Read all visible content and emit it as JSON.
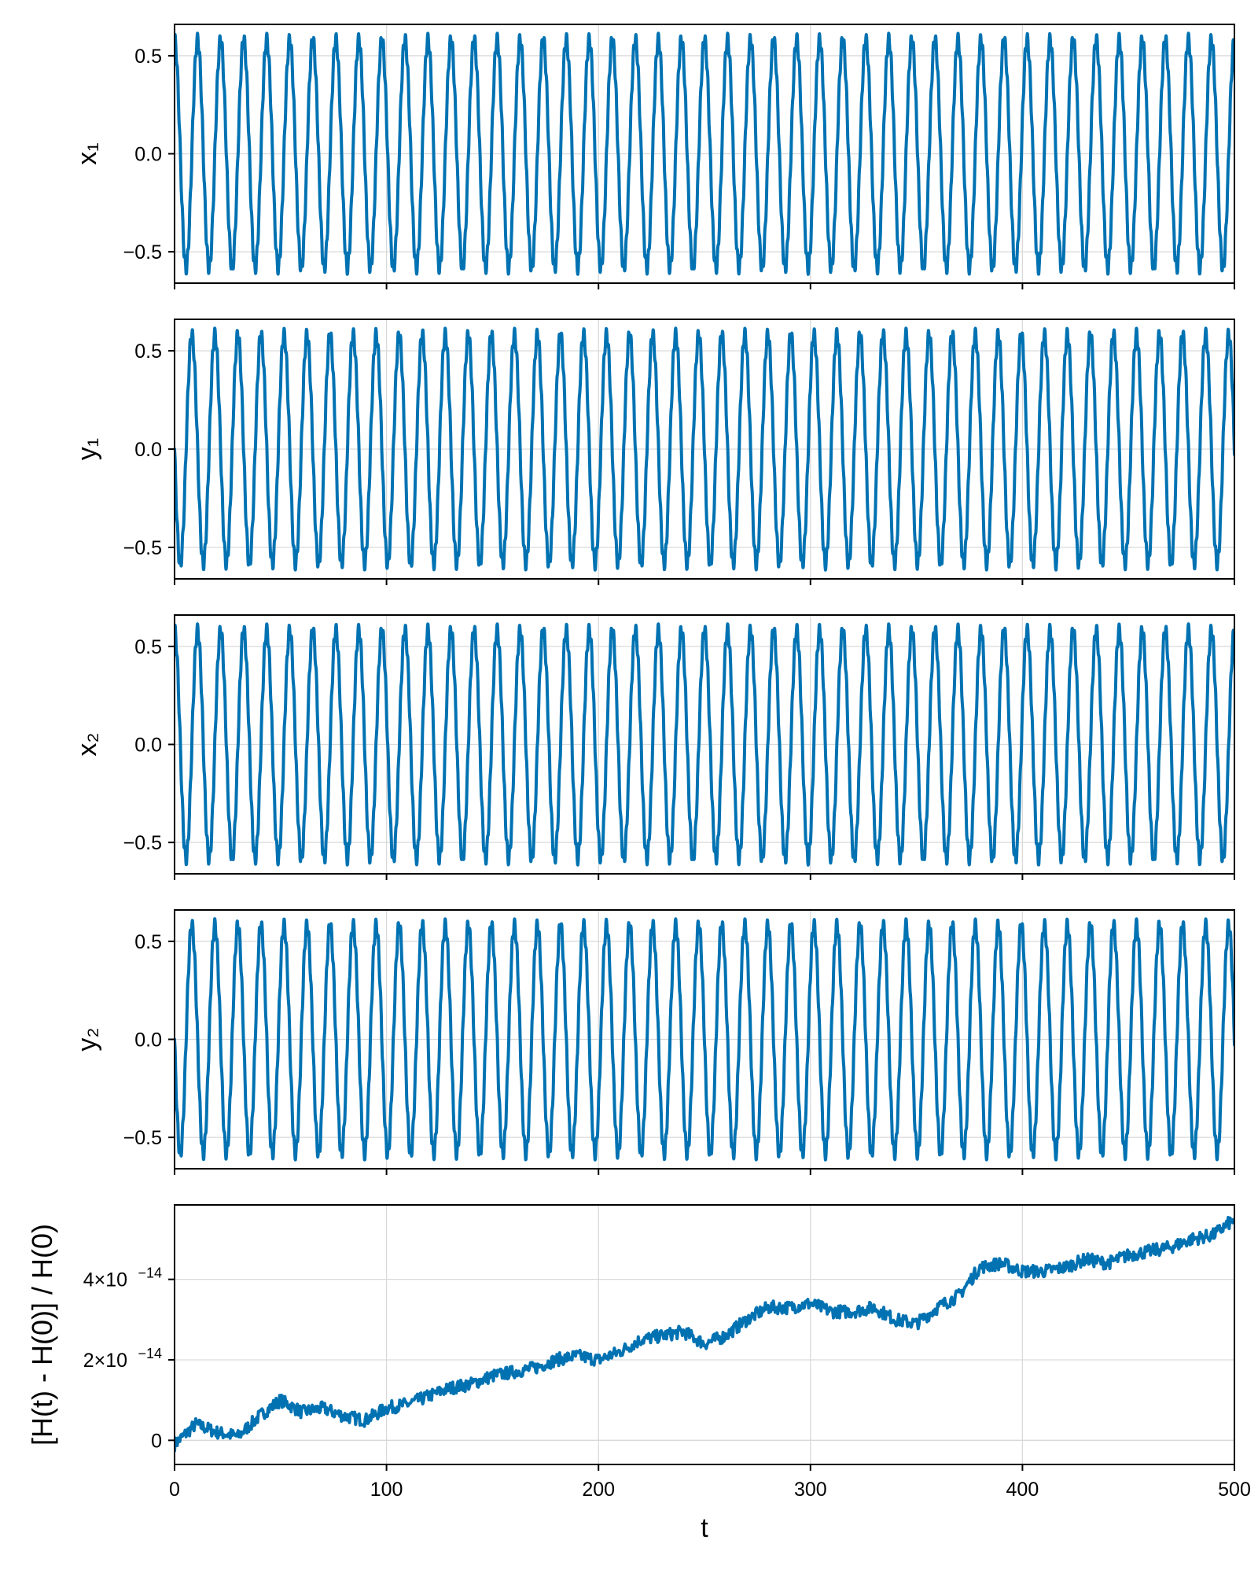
{
  "chart_data": [
    {
      "type": "line",
      "ylabel": "x₁",
      "xlim": [
        0,
        500
      ],
      "ylim": [
        -0.66,
        0.66
      ],
      "yticks": [
        -0.5,
        0.0,
        0.5
      ],
      "ytick_labels": [
        "−0.5",
        "0.0",
        "0.5"
      ],
      "grid": true,
      "series": [
        {
          "color": "#0072b2",
          "amplitude": 0.58,
          "period": 10.87,
          "phase": "cos"
        }
      ]
    },
    {
      "type": "line",
      "ylabel": "y₁",
      "xlim": [
        0,
        500
      ],
      "ylim": [
        -0.66,
        0.66
      ],
      "yticks": [
        -0.5,
        0.0,
        0.5
      ],
      "ytick_labels": [
        "−0.5",
        "0.0",
        "0.5"
      ],
      "grid": true,
      "series": [
        {
          "color": "#0072b2",
          "amplitude": 0.58,
          "period": 10.87,
          "phase": "neg-sin"
        }
      ]
    },
    {
      "type": "line",
      "ylabel": "x₂",
      "xlim": [
        0,
        500
      ],
      "ylim": [
        -0.66,
        0.66
      ],
      "yticks": [
        -0.5,
        0.0,
        0.5
      ],
      "ytick_labels": [
        "−0.5",
        "0.0",
        "0.5"
      ],
      "grid": true,
      "series": [
        {
          "color": "#0072b2",
          "amplitude": 0.58,
          "period": 10.87,
          "phase": "cos"
        }
      ]
    },
    {
      "type": "line",
      "ylabel": "y₂",
      "xlim": [
        0,
        500
      ],
      "ylim": [
        -0.66,
        0.66
      ],
      "yticks": [
        -0.5,
        0.0,
        0.5
      ],
      "ytick_labels": [
        "−0.5",
        "0.0",
        "0.5"
      ],
      "grid": true,
      "series": [
        {
          "color": "#0072b2",
          "amplitude": 0.58,
          "period": 10.87,
          "phase": "neg-sin"
        }
      ]
    },
    {
      "type": "line",
      "ylabel": "[H(t) - H(0)] / H(0)",
      "xlabel": "t",
      "xlim": [
        0,
        500
      ],
      "ylim": [
        -6e-15,
        5.85e-14
      ],
      "xticks": [
        0,
        100,
        200,
        300,
        400,
        500
      ],
      "xtick_labels": [
        "0",
        "100",
        "200",
        "300",
        "400",
        "500"
      ],
      "yticks": [
        0,
        2e-14,
        4e-14
      ],
      "ytick_labels": [
        "0",
        "2×10",
        "4×10"
      ],
      "ytick_exponent": "−14",
      "grid": true,
      "series": [
        {
          "color": "#0072b2",
          "x": [
            0,
            10,
            20,
            30,
            40,
            50,
            60,
            70,
            80,
            90,
            100,
            110,
            120,
            130,
            140,
            150,
            160,
            170,
            180,
            190,
            200,
            210,
            220,
            230,
            240,
            250,
            260,
            270,
            280,
            290,
            300,
            310,
            320,
            330,
            340,
            350,
            360,
            370,
            380,
            390,
            400,
            410,
            420,
            430,
            440,
            450,
            460,
            470,
            480,
            490,
            500
          ],
          "y": [
            -1e-15,
            4e-15,
            2e-15,
            1e-15,
            6e-15,
            1e-14,
            7e-15,
            8e-15,
            6e-15,
            5e-15,
            8e-15,
            9e-15,
            1.1e-14,
            1.3e-14,
            1.4e-14,
            1.6e-14,
            1.7e-14,
            1.8e-14,
            2e-14,
            2.1e-14,
            2e-14,
            2.2e-14,
            2.5e-14,
            2.6e-14,
            2.7e-14,
            2.4e-14,
            2.6e-14,
            3e-14,
            3.3e-14,
            3.3e-14,
            3.4e-14,
            3.2e-14,
            3.2e-14,
            3.3e-14,
            3e-14,
            2.9e-14,
            3.3e-14,
            3.6e-14,
            4.3e-14,
            4.4e-14,
            4.2e-14,
            4.2e-14,
            4.3e-14,
            4.5e-14,
            4.4e-14,
            4.6e-14,
            4.7e-14,
            4.8e-14,
            5e-14,
            5.1e-14,
            5.5e-14
          ]
        }
      ]
    }
  ]
}
